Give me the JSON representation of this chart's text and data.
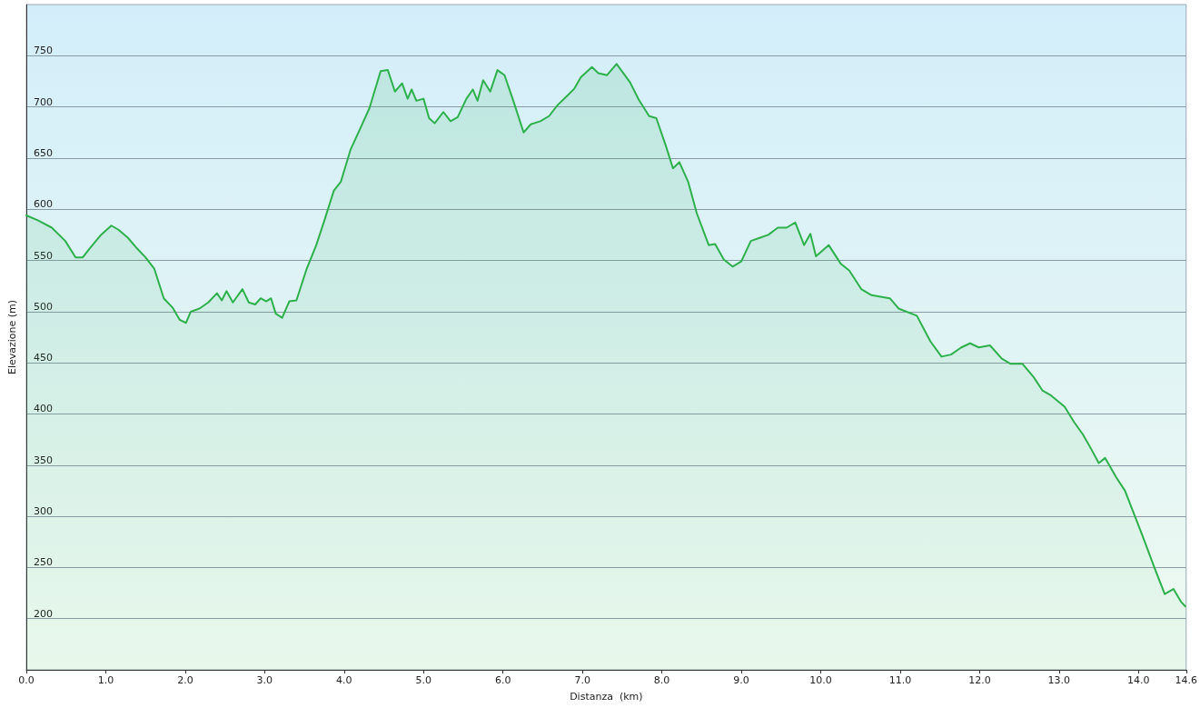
{
  "chart_data": {
    "type": "area",
    "xlabel": "Distanza  (km)",
    "ylabel": "Elevazione (m)",
    "xlim": [
      0,
      14.6
    ],
    "ylim": [
      150,
      800
    ],
    "xticks": [
      {
        "value": 0,
        "label": "0.0"
      },
      {
        "value": 1,
        "label": "1.0"
      },
      {
        "value": 2,
        "label": "2.0"
      },
      {
        "value": 3,
        "label": "3.0"
      },
      {
        "value": 4,
        "label": "4.0"
      },
      {
        "value": 5,
        "label": "5.0"
      },
      {
        "value": 6,
        "label": "6.0"
      },
      {
        "value": 7,
        "label": "7.0"
      },
      {
        "value": 8,
        "label": "8.0"
      },
      {
        "value": 9,
        "label": "9.0"
      },
      {
        "value": 10,
        "label": "10.0"
      },
      {
        "value": 11,
        "label": "11.0"
      },
      {
        "value": 12,
        "label": "12.0"
      },
      {
        "value": 13,
        "label": "13.0"
      },
      {
        "value": 14,
        "label": "14.0"
      },
      {
        "value": 14.6,
        "label": "14.6"
      }
    ],
    "yticks": [
      200,
      250,
      300,
      350,
      400,
      450,
      500,
      550,
      600,
      650,
      700,
      750
    ],
    "grid": "y",
    "marker": "none",
    "line_style": "solid",
    "x": [
      0,
      0.15,
      0.32,
      0.49,
      0.62,
      0.71,
      0.8,
      0.94,
      1.07,
      1.16,
      1.28,
      1.39,
      1.5,
      1.61,
      1.73,
      1.84,
      1.93,
      2.01,
      2.07,
      2.18,
      2.29,
      2.4,
      2.46,
      2.52,
      2.6,
      2.72,
      2.8,
      2.88,
      2.95,
      3.02,
      3.08,
      3.14,
      3.22,
      3.31,
      3.4,
      3.53,
      3.65,
      3.76,
      3.87,
      3.96,
      4.08,
      4.21,
      4.32,
      4.46,
      4.55,
      4.64,
      4.73,
      4.8,
      4.85,
      4.91,
      5,
      5.07,
      5.14,
      5.25,
      5.34,
      5.43,
      5.54,
      5.62,
      5.68,
      5.75,
      5.84,
      5.93,
      6.02,
      6.13,
      6.26,
      6.35,
      6.47,
      6.58,
      6.69,
      6.81,
      6.9,
      6.98,
      7.12,
      7.2,
      7.31,
      7.43,
      7.6,
      7.71,
      7.84,
      7.93,
      8.05,
      8.14,
      8.22,
      8.33,
      8.44,
      8.59,
      8.67,
      8.78,
      8.89,
      9,
      9.12,
      9.23,
      9.34,
      9.46,
      9.57,
      9.68,
      9.79,
      9.87,
      9.94,
      10.1,
      10.25,
      10.36,
      10.51,
      10.64,
      10.87,
      10.98,
      11.21,
      11.38,
      11.52,
      11.64,
      11.77,
      11.88,
      11.99,
      12.13,
      12.28,
      12.39,
      12.54,
      12.68,
      12.79,
      12.9,
      13.07,
      13.19,
      13.3,
      13.41,
      13.5,
      13.58,
      13.72,
      13.83,
      13.92,
      14.05,
      14.2,
      14.33,
      14.44,
      14.54,
      14.59
    ],
    "series": [
      {
        "color": "#2eb04c",
        "values": [
          594,
          589,
          582,
          569,
          553,
          553,
          562,
          575,
          584,
          580,
          572,
          562,
          553,
          542,
          513,
          504,
          492,
          489,
          500,
          503,
          509,
          518,
          511,
          520,
          509,
          522,
          509,
          507,
          513,
          510,
          513,
          498,
          494,
          510,
          511,
          542,
          565,
          591,
          618,
          627,
          658,
          680,
          699,
          735,
          736,
          715,
          723,
          708,
          717,
          706,
          708,
          689,
          684,
          695,
          686,
          690,
          708,
          717,
          706,
          726,
          715,
          736,
          731,
          706,
          675,
          683,
          686,
          691,
          702,
          711,
          718,
          729,
          739,
          733,
          731,
          742,
          724,
          707,
          691,
          689,
          662,
          640,
          646,
          627,
          596,
          565,
          566,
          551,
          544,
          549,
          569,
          572,
          575,
          582,
          582,
          587,
          565,
          576,
          554,
          565,
          547,
          540,
          522,
          516,
          513,
          503,
          496,
          471,
          456,
          458,
          465,
          469,
          465,
          467,
          454,
          449,
          449,
          436,
          423,
          418,
          407,
          392,
          380,
          365,
          352,
          357,
          338,
          325,
          307,
          281,
          250,
          224,
          229,
          216,
          212
        ]
      }
    ]
  }
}
